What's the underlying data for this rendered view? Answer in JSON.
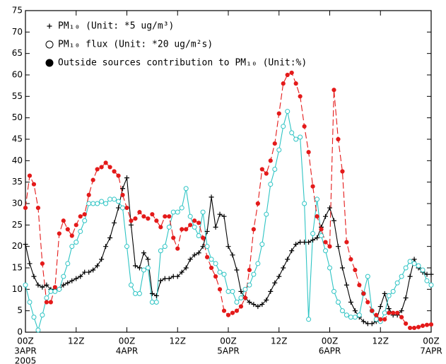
{
  "chart_data": {
    "type": "line",
    "x": [
      0,
      1,
      2,
      3,
      4,
      5,
      6,
      7,
      8,
      9,
      10,
      11,
      12,
      13,
      14,
      15,
      16,
      17,
      18,
      19,
      20,
      21,
      22,
      23,
      24,
      25,
      26,
      27,
      28,
      29,
      30,
      31,
      32,
      33,
      34,
      35,
      36,
      37,
      38,
      39,
      40,
      41,
      42,
      43,
      44,
      45,
      46,
      47,
      48,
      49,
      50,
      51,
      52,
      53,
      54,
      55,
      56,
      57,
      58,
      59,
      60,
      61,
      62,
      63,
      64,
      65,
      66,
      67,
      68,
      69,
      70,
      71,
      72,
      73,
      74,
      75,
      76,
      77,
      78,
      79,
      80,
      81,
      82,
      83,
      84,
      85,
      86,
      87,
      88,
      89,
      90,
      91,
      92,
      93,
      94,
      95,
      96
    ],
    "xlim": [
      0,
      96
    ],
    "xticks": [
      {
        "value": 0,
        "label": "00Z"
      },
      {
        "value": 12,
        "label": "12Z"
      },
      {
        "value": 24,
        "label": "00Z"
      },
      {
        "value": 36,
        "label": "12Z"
      },
      {
        "value": 48,
        "label": "00Z"
      },
      {
        "value": 60,
        "label": "12Z"
      },
      {
        "value": 72,
        "label": "00Z"
      },
      {
        "value": 84,
        "label": "12Z"
      },
      {
        "value": 96,
        "label": "00Z"
      }
    ],
    "x_date_labels": [
      {
        "value": 0,
        "label": "3APR"
      },
      {
        "value": 24,
        "label": "4APR"
      },
      {
        "value": 48,
        "label": "5APR"
      },
      {
        "value": 72,
        "label": "6APR"
      },
      {
        "value": 96,
        "label": "7APR"
      }
    ],
    "year_label": "2005",
    "ylim": [
      0,
      75
    ],
    "yticks": [
      0,
      5,
      10,
      15,
      20,
      25,
      30,
      35,
      40,
      45,
      50,
      55,
      60,
      65,
      70,
      75
    ],
    "series": [
      {
        "name": "PM₁₀ (Unit: *5 ug/m³)",
        "color": "#000000",
        "marker": "plus",
        "dashed": false,
        "values": [
          20.5,
          16,
          13,
          11,
          10.5,
          11,
          10,
          10,
          10,
          11,
          11.5,
          12,
          12.5,
          13,
          14,
          14,
          14.5,
          15.5,
          17,
          20,
          22,
          25.5,
          29,
          33.5,
          36,
          25,
          15.5,
          15,
          18.5,
          17,
          9,
          8.5,
          12,
          12.5,
          12.5,
          13,
          13,
          14,
          15,
          17,
          18,
          18.5,
          20,
          23.5,
          31.5,
          24.5,
          27.5,
          27,
          20,
          18,
          14.5,
          9.5,
          8,
          7,
          6.5,
          6,
          6.5,
          7.5,
          9.5,
          11.5,
          13,
          15,
          17,
          19,
          20.5,
          21,
          21,
          21,
          21.5,
          22,
          24.5,
          27,
          29,
          26,
          20,
          15,
          11,
          7,
          5,
          3.5,
          2.5,
          2,
          2,
          2.5,
          6,
          9,
          5.5,
          4,
          4,
          5,
          8,
          13,
          17,
          15,
          14,
          13.5,
          13.5
        ]
      },
      {
        "name": "PM₁₀ flux (Unit: *20 ug/m²s)",
        "color": "#2ec4c4",
        "marker": "circle-open",
        "dashed": false,
        "values": [
          11,
          7,
          3.5,
          0.5,
          4,
          8,
          9.5,
          9.5,
          10,
          13,
          16,
          20,
          21,
          23.5,
          26,
          30,
          30,
          30,
          30.5,
          30,
          31,
          31,
          30.5,
          29,
          20,
          11,
          9,
          9,
          14.5,
          15,
          7,
          7,
          19,
          20,
          24.5,
          28,
          28,
          29,
          33.5,
          27,
          24.5,
          22.5,
          28,
          20,
          17,
          16,
          14,
          13.5,
          9.5,
          9.5,
          7,
          8,
          10,
          11,
          13.5,
          16,
          20.5,
          27.5,
          34.5,
          38,
          42.5,
          48,
          51.5,
          46.5,
          45,
          45.5,
          30,
          3,
          23,
          31,
          22.5,
          19,
          15,
          9.5,
          7,
          5,
          4,
          3.5,
          3.5,
          4,
          9,
          13,
          5,
          3,
          2.5,
          4.5,
          8.5,
          9.5,
          11.5,
          13,
          15,
          16.5,
          16,
          15.5,
          14.5,
          12,
          11
        ]
      },
      {
        "name": "Outside sources contribution to PM₁₀ (Unit:%)",
        "color": "#e41a1a",
        "marker": "circle-filled",
        "dashed": true,
        "values": [
          29,
          36.5,
          34.5,
          29,
          16,
          7,
          7,
          10.5,
          23,
          26,
          24,
          22.5,
          25,
          27,
          27.5,
          32,
          35.5,
          38,
          38.5,
          39.5,
          38.5,
          37.5,
          36.5,
          32,
          29,
          26,
          26.5,
          28,
          27,
          26.5,
          27.5,
          26,
          24.5,
          27,
          27,
          22,
          19.5,
          24,
          24,
          25,
          26,
          25.5,
          22,
          17.5,
          15,
          13,
          10,
          5,
          4,
          4.5,
          5,
          6,
          8,
          14.5,
          24,
          30,
          38,
          37,
          40,
          44,
          51,
          58,
          60,
          60.5,
          58,
          55,
          48,
          42,
          34,
          27,
          24,
          21,
          20,
          56.5,
          45,
          37.5,
          21,
          17,
          14.5,
          11,
          9,
          7,
          5,
          4,
          3,
          3,
          4.5,
          4.5,
          4.5,
          3.5,
          2,
          1,
          1,
          1.2,
          1.5,
          1.7,
          1.8
        ]
      }
    ]
  }
}
